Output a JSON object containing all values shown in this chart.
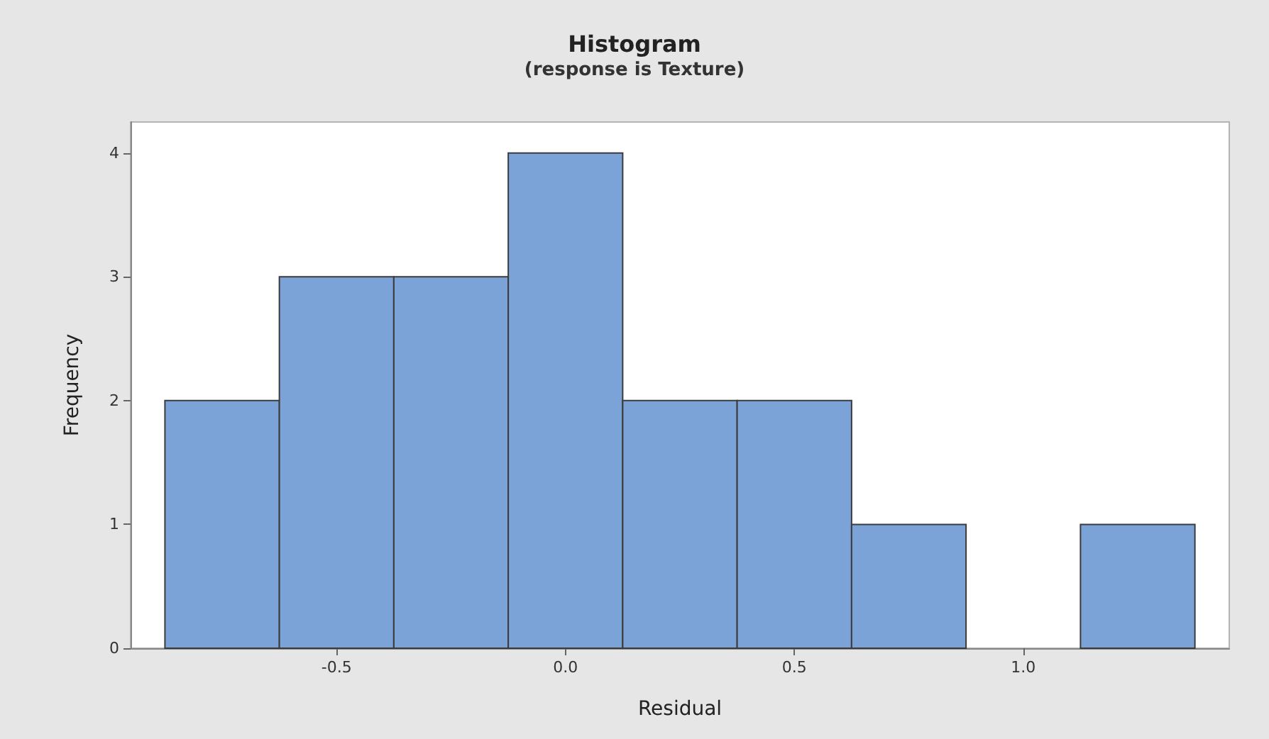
{
  "chart_data": {
    "type": "histogram",
    "title": "Histogram",
    "subtitle": "(response is Texture)",
    "xlabel": "Residual",
    "ylabel": "Frequency",
    "bins": [
      -0.875,
      -0.625,
      -0.375,
      -0.125,
      0.125,
      0.375,
      0.625,
      0.875,
      1.125,
      1.375
    ],
    "values": [
      2,
      3,
      3,
      4,
      2,
      2,
      1,
      0,
      1
    ],
    "color": "#7ba3d8",
    "xlim": [
      -0.95,
      1.45
    ],
    "xticks": [
      {
        "value": -0.5,
        "label": "-0.5"
      },
      {
        "value": 0,
        "label": "0.0"
      },
      {
        "value": 0.5,
        "label": "0.5"
      },
      {
        "value": 1,
        "label": "1.0"
      }
    ],
    "ylim": [
      0,
      4.25
    ],
    "yticks": [
      0,
      1,
      2,
      3,
      4
    ],
    "grid": false
  }
}
